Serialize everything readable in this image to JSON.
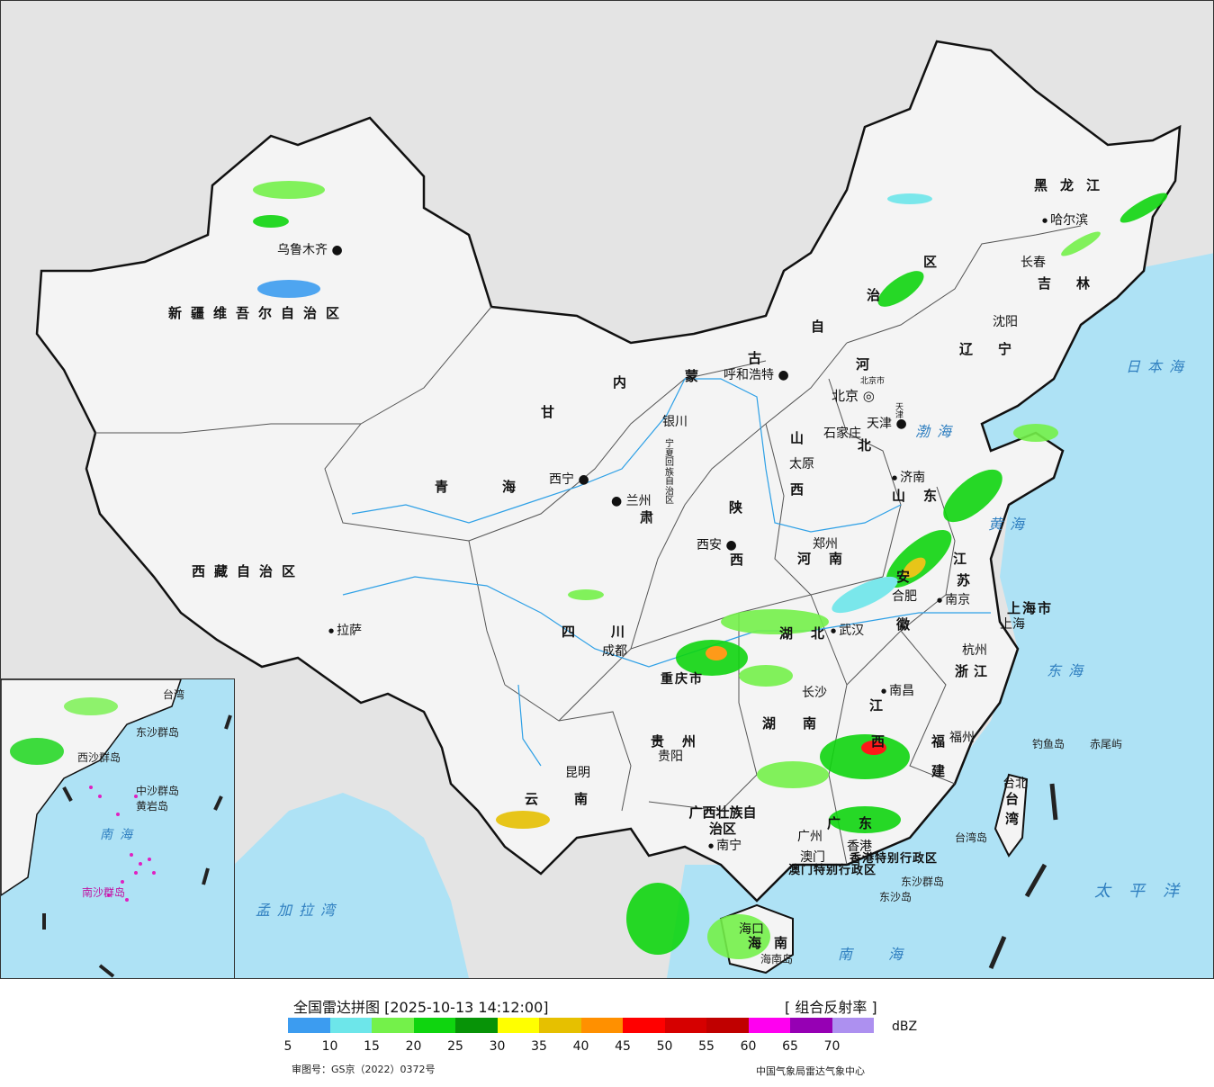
{
  "map": {
    "provinces": {
      "xinjiang": "新疆维吾尔自治区",
      "tibet": "西藏自治区",
      "qinghai": "青海",
      "gansu": "甘",
      "sichuan": "四川",
      "yunnan": "云南",
      "guizhou": "贵州",
      "guangxi": "广西壮族自治区",
      "guangdong": "广东",
      "hainan": "海南",
      "inner_mongolia_a": "内",
      "inner_mongolia_b": "蒙",
      "inner_mongolia_c": "古",
      "inner_mongolia_d": "自",
      "inner_mongolia_e": "治",
      "inner_mongolia_f": "区",
      "heilongjiang": "黑龙江",
      "jilin": "吉林",
      "liaoning": "辽宁",
      "hebei_a": "河",
      "hebei_b": "北",
      "shanxi_a": "山",
      "shanxi_b": "西",
      "shaanxi_a": "陕",
      "shaanxi_b": "西",
      "shandong": "山东",
      "henan": "河南",
      "hubei": "湖北",
      "hunan": "湖南",
      "anhui_a": "安",
      "anhui_b": "徽",
      "jiangsu_a": "江",
      "jiangsu_b": "苏",
      "zhejiang": "浙江",
      "jiangxi_a": "江",
      "jiangxi_b": "西",
      "fujian_a": "福",
      "fujian_b": "建",
      "taiwan_a": "台",
      "taiwan_b": "湾",
      "ningxia": "宁夏回族自治区",
      "gansu_b": "肃",
      "chongqing": "重庆市",
      "shanghai": "上海市",
      "beijing_city": "北京市",
      "tianjin_city": "天津",
      "hk_sar": "香港特别行政区",
      "macau_sar": "澳门特别行政区"
    },
    "cities": {
      "urumqi": "乌鲁木齐",
      "lhasa": "拉萨",
      "xining": "西宁",
      "lanzhou": "兰州",
      "yinchuan": "银川",
      "hohhot": "呼和浩特",
      "beijing": "北京",
      "tianjin": "天津",
      "shijiazhuang": "石家庄",
      "taiyuan": "太原",
      "xian": "西安",
      "zhengzhou": "郑州",
      "jinan": "济南",
      "harbin": "哈尔滨",
      "changchun": "长春",
      "shenyang": "沈阳",
      "nanjing": "南京",
      "hefei": "合肥",
      "shanghai": "上海",
      "hangzhou": "杭州",
      "wuhan": "武汉",
      "chengdu": "成都",
      "chongqing": "重庆",
      "changsha": "长沙",
      "nanchang": "南昌",
      "fuzhou": "福州",
      "guiyang": "贵阳",
      "kunming": "昆明",
      "nanning": "南宁",
      "guangzhou": "广州",
      "hongkong": "香港",
      "macau": "澳门",
      "haikou": "海口",
      "taipei": "台北"
    },
    "seas": {
      "bohai": "渤海",
      "yellow": "黄海",
      "east": "东海",
      "south": "南海",
      "japan": "日本海",
      "pacific": "太平洋",
      "bengal": "孟加拉湾"
    },
    "islands": {
      "diaoyu": "钓鱼岛",
      "chiwei": "赤尾屿",
      "taiwan_island": "台湾岛",
      "hainan_island": "海南岛",
      "dongsha_islands": "东沙群岛",
      "dongsha_island": "东沙岛"
    },
    "inset": {
      "south_sea": "南海",
      "xisha": "西沙群岛",
      "zhongsha": "中沙群岛",
      "huangyan": "黄岩岛",
      "nansha": "南沙群岛",
      "dongsha": "东沙群岛",
      "taiwan": "台湾"
    }
  },
  "legend": {
    "title": "全国雷达拼图 [2025-10-13 14:12:00]",
    "product": "[ 组合反射率 ]",
    "unit": "dBZ",
    "ticks": [
      "5",
      "10",
      "15",
      "20",
      "25",
      "30",
      "35",
      "40",
      "45",
      "50",
      "55",
      "60",
      "65",
      "70"
    ],
    "colors": [
      "#3c9cf0",
      "#6de6ea",
      "#74f14a",
      "#0fd50f",
      "#079307",
      "#ffff00",
      "#e6c000",
      "#ff9000",
      "#ff0000",
      "#d60000",
      "#c00000",
      "#ff00f0",
      "#9600b4",
      "#ad90f0"
    ],
    "review_number": "审图号：GS京（2022）0372号",
    "agency": "中国气象局雷达气象中心"
  }
}
